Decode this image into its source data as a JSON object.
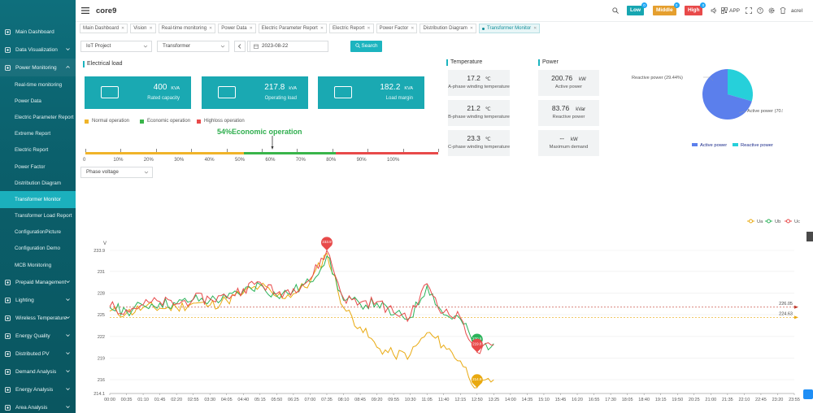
{
  "header": {
    "project": "core9"
  },
  "levels": [
    {
      "label": "Low",
      "count": "0",
      "color": "#17a6b1"
    },
    {
      "label": "Middle",
      "count": "0",
      "color": "#e59f2e"
    },
    {
      "label": "High",
      "count": "0",
      "color": "#e84a4a"
    }
  ],
  "topbar": {
    "app": "APP",
    "user": "acrel"
  },
  "sidebar": {
    "items": [
      {
        "label": "Main Dashboard",
        "icon": "dashboard-icon"
      },
      {
        "label": "Data Visualization",
        "icon": "monitor-icon",
        "caret": true
      },
      {
        "label": "Power Monitoring",
        "icon": "power-icon",
        "caret": true,
        "open": true
      }
    ],
    "sub": [
      "Real-time monitoring",
      "Power Data",
      "Electric Parameter Report",
      "Extreme Report",
      "Electric Report",
      "Power Factor",
      "Distribution Diagram",
      "Transformer Monitor",
      "Transformer Load Report",
      "ConfigurationPicture",
      "Configuration Demo",
      "MCB Monitoring"
    ],
    "active_sub": 7,
    "rest": [
      {
        "label": "Prepaid Management",
        "icon": "prepaid-icon"
      },
      {
        "label": "Lighting",
        "icon": "light-icon"
      },
      {
        "label": "Wireless Temperature",
        "icon": "thermo-icon"
      },
      {
        "label": "Energy Quality",
        "icon": "quality-icon"
      },
      {
        "label": "Distributed PV",
        "icon": "solar-icon"
      },
      {
        "label": "Demand Analysis",
        "icon": "demand-icon"
      },
      {
        "label": "Energy Analysis",
        "icon": "energy-icon"
      },
      {
        "label": "Area Analysis",
        "icon": "area-icon"
      }
    ]
  },
  "tabs": [
    "Main Dashboard",
    "Vision",
    "Real-time monitoring",
    "Power Data",
    "Electric Parameter Report",
    "Electric Report",
    "Power Factor",
    "Distribution Diagram",
    "Transformer Monitor"
  ],
  "active_tab": 8,
  "filters": {
    "project": "IoT Project",
    "device": "Transformer",
    "date": "2023-08-22",
    "search": "Search",
    "voltage": "Phase voltage"
  },
  "load": {
    "title": "Electrical load",
    "cards": [
      {
        "value": "400",
        "unit": "KVA",
        "label": "Rated capacity"
      },
      {
        "value": "217.8",
        "unit": "kVA",
        "label": "Operating load"
      },
      {
        "value": "182.2",
        "unit": "KVA",
        "label": "Load margin"
      }
    ],
    "legend": [
      {
        "label": "Normal operation",
        "color": "#f0b429"
      },
      {
        "label": "Economic operation",
        "color": "#39b54a"
      },
      {
        "label": "Highloss operation",
        "color": "#e84a4a"
      }
    ],
    "status": "54%Economic operation",
    "percent": 54,
    "ticks": [
      "0",
      "10%",
      "20%",
      "30%",
      "40%",
      "50%",
      "60%",
      "70%",
      "80%",
      "90%",
      "100%"
    ]
  },
  "temperature": {
    "title": "Temperature",
    "items": [
      {
        "value": "17.2",
        "unit": "℃",
        "label": "A-phase winding temperature"
      },
      {
        "value": "21.2",
        "unit": "℃",
        "label": "B-phase winding temperature"
      },
      {
        "value": "23.3",
        "unit": "℃",
        "label": "C-phase winding temperature"
      }
    ]
  },
  "power": {
    "title": "Power",
    "items": [
      {
        "value": "200.76",
        "unit": "kW",
        "label": "Active power"
      },
      {
        "value": "83.76",
        "unit": "kVar",
        "label": "Reactive power"
      },
      {
        "value": "--",
        "unit": "kW",
        "label": "Maximum demand"
      }
    ],
    "pie": {
      "slices": [
        {
          "name": "Active power",
          "label": "Active power (70.56%)",
          "value": 70.56,
          "color": "#5b7fec"
        },
        {
          "name": "Reactive power",
          "label": "Reactive power (29.44%)",
          "value": 29.44,
          "color": "#26d0da"
        }
      ],
      "legend": [
        "Active power",
        "Reactive power"
      ]
    }
  },
  "chart_data": {
    "type": "line",
    "ylabel": "V",
    "ylim": [
      214.1,
      233.9
    ],
    "yticks": [
      "214.1",
      "216",
      "219",
      "222",
      "225",
      "228",
      "231",
      "233.9"
    ],
    "xticks": [
      "00:00",
      "00:35",
      "01:10",
      "01:45",
      "02:20",
      "02:55",
      "03:30",
      "04:05",
      "04:40",
      "05:15",
      "05:50",
      "06:25",
      "07:00",
      "07:35",
      "08:10",
      "08:45",
      "09:20",
      "09:55",
      "10:30",
      "11:05",
      "11:40",
      "12:15",
      "12:50",
      "13:25",
      "14:00",
      "14:35",
      "15:10",
      "15:45",
      "16:20",
      "16:55",
      "17:30",
      "18:05",
      "18:40",
      "19:15",
      "19:50",
      "20:25",
      "21:00",
      "21:35",
      "22:10",
      "22:45",
      "23:20",
      "23:55"
    ],
    "series": [
      {
        "name": "Ua",
        "color": "#e9a90f",
        "x": [
          "00:00",
          "00:35",
          "01:10",
          "01:45",
          "02:20",
          "02:55",
          "03:30",
          "04:05",
          "04:40",
          "05:15",
          "05:50",
          "06:25",
          "07:00",
          "07:35",
          "08:10",
          "08:45",
          "09:20",
          "09:55",
          "10:30",
          "11:05",
          "11:40",
          "12:15",
          "12:50",
          "13:25"
        ],
        "values": [
          225.5,
          225.2,
          226.0,
          225.9,
          226.0,
          226.6,
          226.3,
          227.0,
          228.0,
          229.0,
          227.5,
          227.9,
          229.5,
          233.5,
          226.0,
          223.3,
          220.5,
          219.5,
          219.5,
          222.5,
          220.8,
          218.6,
          214.9,
          216.0
        ]
      },
      {
        "name": "Ub",
        "color": "#2bb35a",
        "x": [
          "00:00",
          "00:35",
          "01:10",
          "01:45",
          "02:20",
          "02:55",
          "03:30",
          "04:05",
          "04:40",
          "05:15",
          "05:50",
          "06:25",
          "07:00",
          "07:35",
          "08:10",
          "08:45",
          "09:20",
          "09:55",
          "10:30",
          "11:05",
          "11:40",
          "12:15",
          "12:50",
          "13:25"
        ],
        "values": [
          226.0,
          225.5,
          226.3,
          226.6,
          226.5,
          227.1,
          227.0,
          227.3,
          228.3,
          229.2,
          227.6,
          228.3,
          229.5,
          233.1,
          227.0,
          226.5,
          226.6,
          225.0,
          224.6,
          229.0,
          225.0,
          224.4,
          220.5,
          221.0
        ]
      },
      {
        "name": "Uc",
        "color": "#e84a4a",
        "x": [
          "00:00",
          "00:35",
          "01:10",
          "01:45",
          "02:20",
          "02:55",
          "03:30",
          "04:05",
          "04:40",
          "05:15",
          "05:50",
          "06:25",
          "07:00",
          "07:35",
          "08:10",
          "08:45",
          "09:20",
          "09:55",
          "10:30",
          "11:05",
          "11:40",
          "12:15",
          "12:50",
          "13:25"
        ],
        "values": [
          226.1,
          225.7,
          226.4,
          226.8,
          226.5,
          227.2,
          227.2,
          227.5,
          228.6,
          229.5,
          227.9,
          228.6,
          229.9,
          233.9,
          227.3,
          226.7,
          226.8,
          225.3,
          224.8,
          229.3,
          225.3,
          224.6,
          219.8,
          220.8
        ]
      }
    ],
    "refs": [
      {
        "value": 226.05,
        "label": "226.05",
        "color": "#c0392b"
      },
      {
        "value": 224.63,
        "label": "224.63",
        "color": "#e9a90f"
      }
    ],
    "markers": [
      {
        "series": "Uc",
        "x": "07:35",
        "value": 233.9,
        "label": "233.9",
        "color": "#e84a4a"
      },
      {
        "series": "Ub",
        "x": "12:50",
        "value": 220.5,
        "label": "220.5",
        "color": "#2bb35a"
      },
      {
        "series": "Uc",
        "x": "12:50",
        "value": 219.8,
        "label": "219.8",
        "color": "#e84a4a"
      },
      {
        "series": "Ua",
        "x": "12:50",
        "value": 214.9,
        "label": "214.9",
        "color": "#e9a90f"
      }
    ],
    "legend": [
      "Ua",
      "Ub",
      "Uc"
    ]
  }
}
